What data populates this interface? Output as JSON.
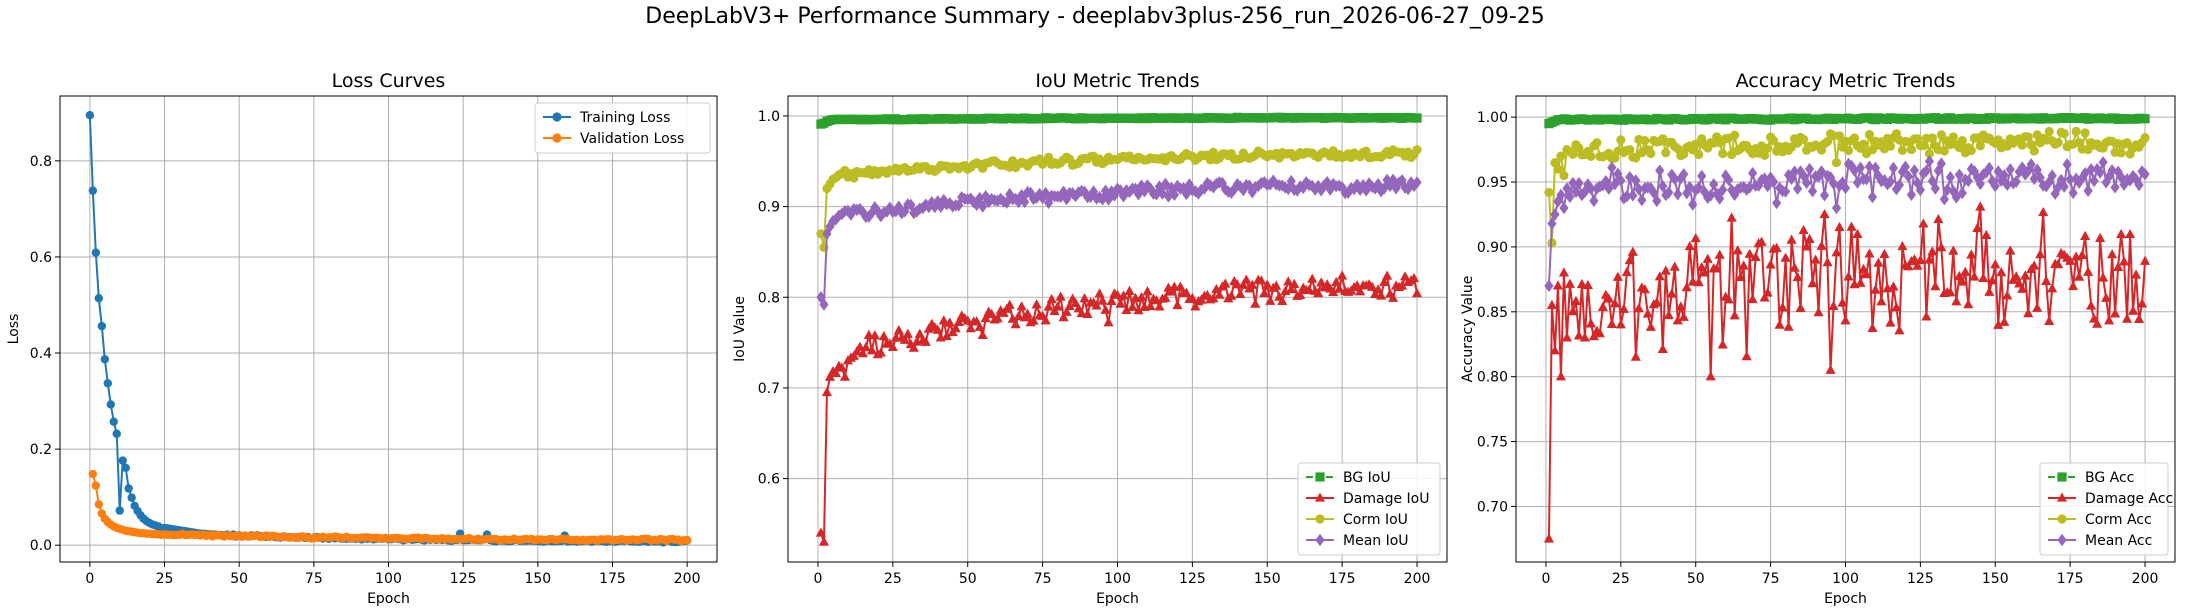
{
  "figure": {
    "title": "DeepLabV3+ Performance Summary - deeplabv3plus-256_run_2026-06-27_09-25"
  },
  "colors": {
    "blue": "#1f77b4",
    "orange": "#ff7f0e",
    "green": "#2ca02c",
    "red": "#d62728",
    "olive": "#bcbd22",
    "purple": "#9467bd",
    "grid": "#b0b0b0"
  },
  "chart_data": [
    {
      "type": "line",
      "title": "Loss Curves",
      "xlabel": "Epoch",
      "ylabel": "Loss",
      "xlim": [
        -10,
        210
      ],
      "ylim": [
        -0.035,
        0.935
      ],
      "xticks": [
        0,
        25,
        50,
        75,
        100,
        125,
        150,
        175,
        200
      ],
      "yticks": [
        0.0,
        0.2,
        0.4,
        0.6,
        0.8
      ],
      "ytick_labels": [
        "0.0",
        "0.2",
        "0.4",
        "0.6",
        "0.8"
      ],
      "grid": true,
      "legend_position": "upper right",
      "series": [
        {
          "name": "Training Loss",
          "color": "#1f77b4",
          "marker": "circle",
          "epoch_start": 0,
          "head": [
            0.895,
            0.738,
            0.609,
            0.514,
            0.456,
            0.387,
            0.337,
            0.293,
            0.257,
            0.232,
            0.201,
            0.176,
            0.161,
            0.118,
            0.099,
            0.082,
            0.071,
            0.062,
            0.055,
            0.05,
            0.046,
            0.043,
            0.041,
            0.039,
            0.037,
            0.036,
            0.035,
            0.034,
            0.033,
            0.032,
            0.031,
            0.03,
            0.029,
            0.028,
            0.027,
            0.026,
            0.025,
            0.024,
            0.024,
            0.023,
            0.023,
            0.022,
            0.022,
            0.021,
            0.021,
            0.02,
            0.02
          ],
          "tail_start": 0.02,
          "tail_end": 0.008,
          "spikes": [
            [
              10,
              0.072
            ],
            [
              24,
              0.022
            ],
            [
              46,
              0.022
            ],
            [
              124,
              0.024
            ],
            [
              133,
              0.022
            ],
            [
              159,
              0.02
            ]
          ],
          "n_points": 201
        },
        {
          "name": "Validation Loss",
          "color": "#ff7f0e",
          "marker": "circle",
          "epoch_start": 1,
          "head": [
            0.148,
            0.124,
            0.085,
            0.066,
            0.055,
            0.048,
            0.043,
            0.039,
            0.036,
            0.034,
            0.032,
            0.03,
            0.029,
            0.028,
            0.027,
            0.026,
            0.025,
            0.025,
            0.024,
            0.024,
            0.023
          ],
          "tail_start": 0.023,
          "tail_end": 0.011,
          "spikes": [],
          "n_points": 200
        }
      ]
    },
    {
      "type": "line",
      "title": "IoU Metric Trends",
      "xlabel": "Epoch",
      "ylabel": "IoU Value",
      "xlim": [
        -10,
        210
      ],
      "ylim": [
        0.508,
        1.022
      ],
      "xticks": [
        0,
        25,
        50,
        75,
        100,
        125,
        150,
        175,
        200
      ],
      "yticks": [
        0.6,
        0.7,
        0.8,
        0.9,
        1.0
      ],
      "ytick_labels": [
        "0.6",
        "0.7",
        "0.8",
        "0.9",
        "1.0"
      ],
      "grid": true,
      "legend_position": "lower right",
      "series": [
        {
          "name": "BG IoU",
          "color": "#2ca02c",
          "marker": "square",
          "dashed": true,
          "epoch_start": 1,
          "head": [
            0.991,
            0.992,
            0.994,
            0.995,
            0.996
          ],
          "tail_start": 0.996,
          "tail_end": 0.998,
          "amp": 0.0005,
          "noise": 0.0003,
          "dips": [],
          "n_points": 200
        },
        {
          "name": "Damage IoU",
          "color": "#d62728",
          "marker": "triangle",
          "epoch_start": 1,
          "head": [
            0.54,
            0.53,
            0.695,
            0.712,
            0.718,
            0.716,
            0.724,
            0.722,
            0.712,
            0.73,
            0.733,
            0.735,
            0.74,
            0.745
          ],
          "tail_start": 0.745,
          "tail_end": 0.812,
          "amp": 0.012,
          "noise": 0.004,
          "dips": [
            [
              55,
              0.758
            ],
            [
              97,
              0.772
            ],
            [
              31,
              0.748
            ]
          ],
          "n_points": 200
        },
        {
          "name": "Corm IoU",
          "color": "#bcbd22",
          "marker": "circle",
          "epoch_start": 1,
          "head": [
            0.87,
            0.855,
            0.92,
            0.925,
            0.93,
            0.932,
            0.935
          ],
          "tail_start": 0.935,
          "tail_end": 0.958,
          "amp": 0.004,
          "noise": 0.0015,
          "dips": [],
          "n_points": 200
        },
        {
          "name": "Mean IoU",
          "color": "#9467bd",
          "marker": "diamond",
          "epoch_start": 1,
          "head": [
            0.8,
            0.792,
            0.87,
            0.878,
            0.884,
            0.886,
            0.89,
            0.892
          ],
          "tail_start": 0.892,
          "tail_end": 0.923,
          "amp": 0.006,
          "noise": 0.002,
          "dips": [
            [
              97,
              0.908
            ]
          ],
          "n_points": 200
        }
      ]
    },
    {
      "type": "line",
      "title": "Accuracy Metric Trends",
      "xlabel": "Epoch",
      "ylabel": "Accuracy Value",
      "xlim": [
        -10,
        210
      ],
      "ylim": [
        0.6572,
        1.0163
      ],
      "xticks": [
        0,
        25,
        50,
        75,
        100,
        125,
        150,
        175,
        200
      ],
      "yticks": [
        0.7,
        0.75,
        0.8,
        0.85,
        0.9,
        0.95,
        1.0
      ],
      "ytick_labels": [
        "0.70",
        "0.75",
        "0.80",
        "0.85",
        "0.90",
        "0.95",
        "1.00"
      ],
      "grid": true,
      "legend_position": "lower right",
      "series": [
        {
          "name": "BG Acc",
          "color": "#2ca02c",
          "marker": "square",
          "dashed": true,
          "epoch_start": 1,
          "head": [
            0.995,
            0.996,
            0.997,
            0.998
          ],
          "tail_start": 0.998,
          "tail_end": 0.999,
          "amp": 0.0006,
          "noise": 0.0003,
          "dips": [],
          "n_points": 200
        },
        {
          "name": "Damage Acc",
          "color": "#d62728",
          "marker": "triangle",
          "epoch_start": 1,
          "head": [
            0.675,
            0.855,
            0.82,
            0.87,
            0.8,
            0.88,
            0.83
          ],
          "tail_start": 0.855,
          "tail_end": 0.88,
          "amp": 0.035,
          "noise": 0.022,
          "dips": [
            [
              55,
              0.8
            ],
            [
              93,
              0.925
            ],
            [
              95,
              0.805
            ],
            [
              98,
              0.915
            ]
          ],
          "n_points": 200
        },
        {
          "name": "Corm Acc",
          "color": "#bcbd22",
          "marker": "circle",
          "epoch_start": 1,
          "head": [
            0.942,
            0.903,
            0.965,
            0.96,
            0.97,
            0.955,
            0.975
          ],
          "tail_start": 0.972,
          "tail_end": 0.981,
          "amp": 0.006,
          "noise": 0.004,
          "dips": [
            [
              97,
              0.965
            ]
          ],
          "n_points": 200
        },
        {
          "name": "Mean Acc",
          "color": "#9467bd",
          "marker": "diamond",
          "epoch_start": 1,
          "head": [
            0.87,
            0.918,
            0.925,
            0.935,
            0.94,
            0.93,
            0.945
          ],
          "tail_start": 0.944,
          "tail_end": 0.953,
          "amp": 0.01,
          "noise": 0.006,
          "dips": [
            [
              97,
              0.93
            ]
          ],
          "n_points": 200
        }
      ]
    }
  ]
}
